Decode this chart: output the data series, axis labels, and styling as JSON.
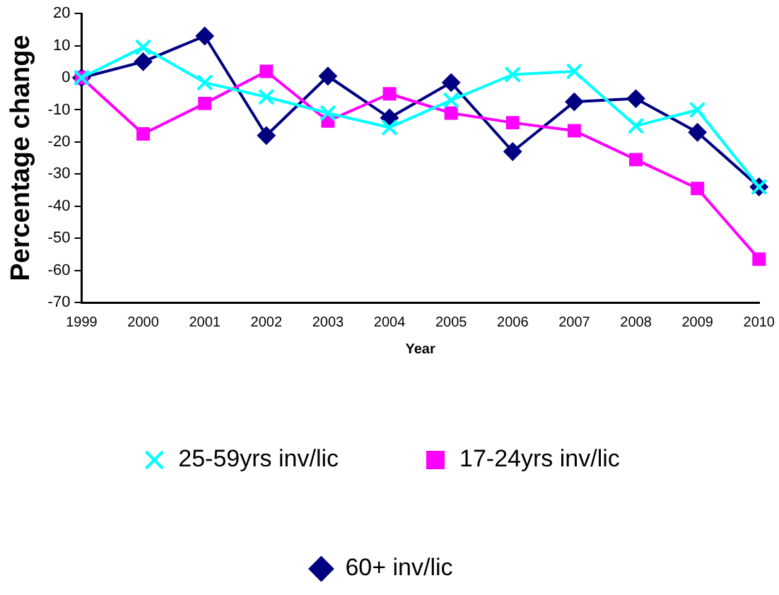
{
  "chart_data": {
    "type": "line",
    "xlabel": "Year",
    "ylabel": "Percentage change",
    "categories": [
      "1999",
      "2000",
      "2001",
      "2002",
      "2003",
      "2004",
      "2005",
      "2006",
      "2007",
      "2008",
      "2009",
      "2010"
    ],
    "series": [
      {
        "name": "25-59yrs inv/lic",
        "color": "#00ffff",
        "marker": "cross",
        "values": [
          0,
          9.5,
          -1.5,
          -6,
          -11,
          -15.5,
          -7,
          1,
          2,
          -15,
          -10,
          -34
        ]
      },
      {
        "name": "17-24yrs inv/lic",
        "color": "#ff00ff",
        "marker": "square",
        "values": [
          0,
          -17.5,
          -8,
          2,
          -13.5,
          -5,
          -11,
          -14,
          -16.5,
          -25.5,
          -34.5,
          -56.5
        ]
      },
      {
        "name": "60+ inv/lic",
        "color": "#000080",
        "marker": "diamond",
        "values": [
          0,
          5,
          13,
          -18,
          0.5,
          -12.5,
          -1.5,
          -23,
          -7.5,
          -6.5,
          -17,
          -34
        ]
      }
    ],
    "ylim": [
      -70,
      20
    ],
    "yticks": [
      -70,
      -60,
      -50,
      -40,
      -30,
      -20,
      -10,
      0,
      10,
      20
    ],
    "grid": false,
    "legend": "bottom",
    "line_style": "solid"
  }
}
